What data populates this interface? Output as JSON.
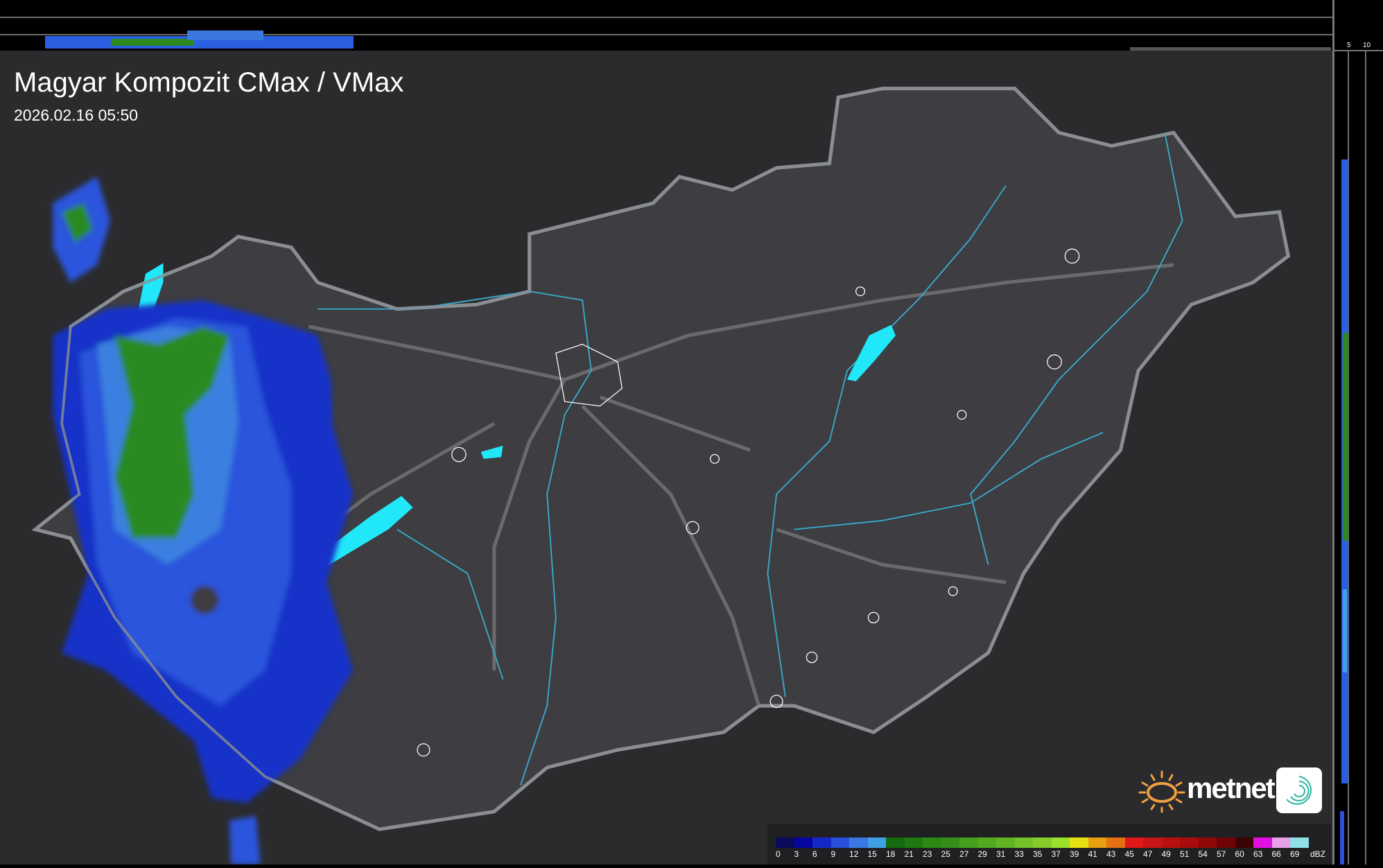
{
  "header": {
    "title": "Magyar Kompozit CMax / VMax",
    "timestamp": "2026.02.16 05:50"
  },
  "profile_axes": {
    "top_ticks": [
      "10",
      "5"
    ],
    "right_ticks": [
      "5",
      "10"
    ]
  },
  "legend": {
    "unit": "dBZ",
    "labels": [
      "0",
      "3",
      "6",
      "9",
      "12",
      "15",
      "18",
      "21",
      "23",
      "25",
      "27",
      "29",
      "31",
      "33",
      "35",
      "37",
      "39",
      "41",
      "43",
      "45",
      "47",
      "49",
      "51",
      "54",
      "57",
      "60",
      "63",
      "66",
      "69"
    ],
    "colors": [
      "#0a0a5c",
      "#0505a0",
      "#1428c8",
      "#2850dc",
      "#3a78e0",
      "#40a0e6",
      "#156a10",
      "#1e7a10",
      "#2a8a14",
      "#368e18",
      "#44a01e",
      "#52aa20",
      "#62b424",
      "#74c02a",
      "#86cc2c",
      "#9ae02c",
      "#e6e010",
      "#e8a010",
      "#e87014",
      "#e01818",
      "#c81414",
      "#b81010",
      "#a80c0c",
      "#900808",
      "#700404",
      "#3a0404",
      "#e010e0",
      "#e8a0e8",
      "#90e0e8"
    ]
  },
  "logo": {
    "brand": "metnet",
    "sun_color": "#f0a040"
  },
  "colors": {
    "background": "#2a2a2c",
    "country": "#3c3c40",
    "border": "#8a8e92",
    "rivers": "#3aa8c8",
    "lakes": "#20e0f0",
    "roads": "#6a6a6e"
  }
}
